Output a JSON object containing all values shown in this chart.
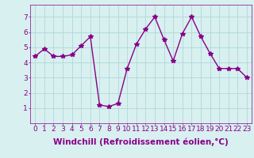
{
  "x": [
    0,
    1,
    2,
    3,
    4,
    5,
    6,
    7,
    8,
    9,
    10,
    11,
    12,
    13,
    14,
    15,
    16,
    17,
    18,
    19,
    20,
    21,
    22,
    23
  ],
  "y": [
    4.4,
    4.9,
    4.4,
    4.4,
    4.5,
    5.1,
    5.7,
    1.2,
    1.1,
    1.3,
    3.6,
    5.2,
    6.2,
    7.0,
    5.5,
    4.1,
    5.9,
    7.0,
    5.7,
    4.6,
    3.6,
    3.6,
    3.6,
    3.0
  ],
  "line_color": "#880088",
  "marker": "*",
  "bg_color": "#d8f0f0",
  "grid_color": "#b0d8d8",
  "xlabel": "Windchill (Refroidissement éolien,°C)",
  "xlim": [
    -0.5,
    23.5
  ],
  "ylim": [
    0,
    7.8
  ],
  "xticks": [
    0,
    1,
    2,
    3,
    4,
    5,
    6,
    7,
    8,
    9,
    10,
    11,
    12,
    13,
    14,
    15,
    16,
    17,
    18,
    19,
    20,
    21,
    22,
    23
  ],
  "yticks": [
    1,
    2,
    3,
    4,
    5,
    6,
    7
  ],
  "xlabel_fontsize": 7.5,
  "tick_fontsize": 6.5,
  "line_width": 1.0,
  "marker_size": 4
}
